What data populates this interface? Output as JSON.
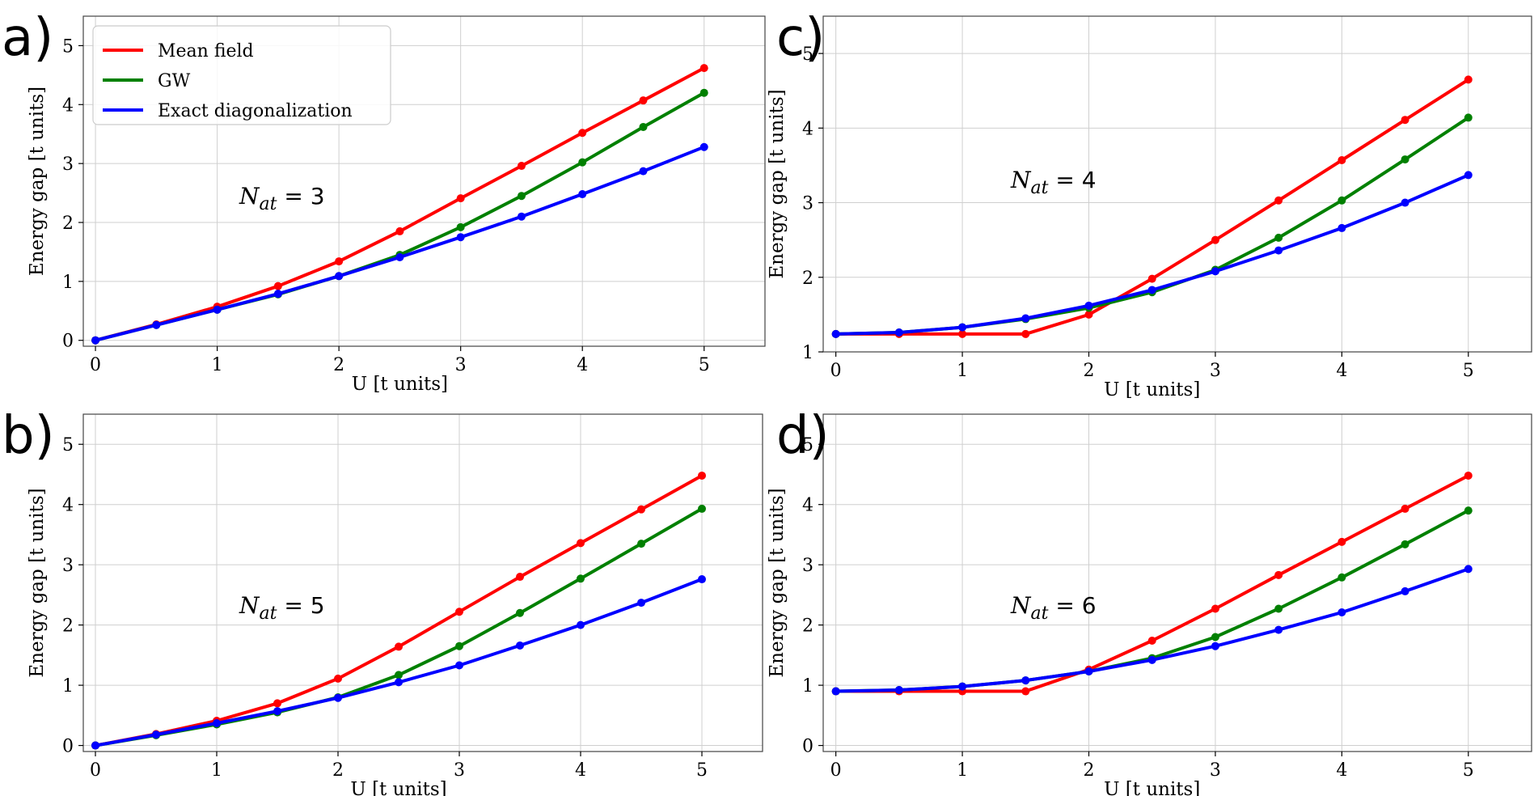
{
  "colors": {
    "mean_field": "#ff0000",
    "gw": "#008000",
    "exact": "#0000ff",
    "grid": "#cfcfcf",
    "frame": "#444444"
  },
  "chart_data": [
    {
      "type": "line",
      "panel_label": "a)",
      "annotation": {
        "prefix": "N",
        "subscript": "at",
        "suffix": " = 3"
      },
      "xlabel": "U [t units]",
      "ylabel": "Energy gap [t units]",
      "xlim": [
        -0.1,
        5.5
      ],
      "ylim": [
        -0.1,
        5.5
      ],
      "xticks": [
        0,
        1,
        2,
        3,
        4,
        5
      ],
      "yticks": [
        0,
        1,
        2,
        3,
        4,
        5
      ],
      "grid": true,
      "legend": {
        "location": "top-left",
        "entries": [
          "Mean field",
          "GW",
          "Exact diagonalization"
        ]
      },
      "x": [
        0,
        0.5,
        1,
        1.5,
        2,
        2.5,
        3,
        3.5,
        4,
        4.5,
        5
      ],
      "series": [
        {
          "name": "Mean field",
          "values": [
            0.0,
            0.27,
            0.57,
            0.92,
            1.34,
            1.85,
            2.41,
            2.96,
            3.52,
            4.07,
            4.62
          ]
        },
        {
          "name": "GW",
          "values": [
            0.0,
            0.26,
            0.52,
            0.78,
            1.09,
            1.45,
            1.92,
            2.45,
            3.02,
            3.62,
            4.2
          ]
        },
        {
          "name": "Exact diagonalization",
          "values": [
            0.0,
            0.26,
            0.52,
            0.79,
            1.09,
            1.41,
            1.75,
            2.1,
            2.48,
            2.87,
            3.28
          ]
        }
      ]
    },
    {
      "type": "line",
      "panel_label": "b)",
      "annotation": {
        "prefix": "N",
        "subscript": "at",
        "suffix": " = 5"
      },
      "xlabel": "U [t units]",
      "ylabel": "Energy gap [t units]",
      "xlim": [
        -0.1,
        5.5
      ],
      "ylim": [
        -0.1,
        5.5
      ],
      "xticks": [
        0,
        1,
        2,
        3,
        4,
        5
      ],
      "yticks": [
        0,
        1,
        2,
        3,
        4,
        5
      ],
      "grid": true,
      "x": [
        0,
        0.5,
        1,
        1.5,
        2,
        2.5,
        3,
        3.5,
        4,
        4.5,
        5
      ],
      "series": [
        {
          "name": "Mean field",
          "values": [
            0.0,
            0.19,
            0.41,
            0.7,
            1.11,
            1.64,
            2.22,
            2.8,
            3.36,
            3.92,
            4.48
          ]
        },
        {
          "name": "GW",
          "values": [
            0.0,
            0.17,
            0.35,
            0.55,
            0.8,
            1.17,
            1.65,
            2.2,
            2.77,
            3.35,
            3.93
          ]
        },
        {
          "name": "Exact diagonalization",
          "values": [
            0.0,
            0.18,
            0.37,
            0.57,
            0.79,
            1.05,
            1.33,
            1.66,
            2.0,
            2.37,
            2.76
          ]
        }
      ]
    },
    {
      "type": "line",
      "panel_label": "c)",
      "annotation": {
        "prefix": "N",
        "subscript": "at",
        "suffix": " = 4"
      },
      "xlabel": "U [t units]",
      "ylabel": "Energy gap [t units]",
      "xlim": [
        -0.1,
        5.5
      ],
      "ylim": [
        1.0,
        5.5
      ],
      "xticks": [
        0,
        1,
        2,
        3,
        4,
        5
      ],
      "yticks": [
        1,
        2,
        3,
        4,
        5
      ],
      "grid": true,
      "x": [
        0,
        0.5,
        1,
        1.5,
        2,
        2.5,
        3,
        3.5,
        4,
        4.5,
        5
      ],
      "series": [
        {
          "name": "Mean field",
          "values": [
            1.24,
            1.24,
            1.24,
            1.24,
            1.5,
            1.98,
            2.5,
            3.03,
            3.57,
            4.11,
            4.65
          ]
        },
        {
          "name": "GW",
          "values": [
            1.24,
            1.26,
            1.33,
            1.44,
            1.59,
            1.8,
            2.1,
            2.53,
            3.03,
            3.58,
            4.14
          ]
        },
        {
          "name": "Exact diagonalization",
          "values": [
            1.24,
            1.26,
            1.33,
            1.45,
            1.62,
            1.83,
            2.08,
            2.36,
            2.66,
            3.0,
            3.37
          ]
        }
      ]
    },
    {
      "type": "line",
      "panel_label": "d)",
      "annotation": {
        "prefix": "N",
        "subscript": "at",
        "suffix": " = 6"
      },
      "xlabel": "U [t units]",
      "ylabel": "Energy gap [t units]",
      "xlim": [
        -0.1,
        5.5
      ],
      "ylim": [
        -0.1,
        5.5
      ],
      "xticks": [
        0,
        1,
        2,
        3,
        4,
        5
      ],
      "yticks": [
        0,
        1,
        2,
        3,
        4,
        5
      ],
      "grid": true,
      "x": [
        0,
        0.5,
        1,
        1.5,
        2,
        2.5,
        3,
        3.5,
        4,
        4.5,
        5
      ],
      "series": [
        {
          "name": "Mean field",
          "values": [
            0.9,
            0.9,
            0.9,
            0.9,
            1.26,
            1.74,
            2.27,
            2.83,
            3.38,
            3.93,
            4.48
          ]
        },
        {
          "name": "GW",
          "values": [
            0.9,
            0.92,
            0.98,
            1.08,
            1.23,
            1.45,
            1.8,
            2.27,
            2.79,
            3.34,
            3.9
          ]
        },
        {
          "name": "Exact diagonalization",
          "values": [
            0.9,
            0.92,
            0.98,
            1.08,
            1.23,
            1.42,
            1.65,
            1.92,
            2.21,
            2.56,
            2.93
          ]
        }
      ]
    }
  ]
}
